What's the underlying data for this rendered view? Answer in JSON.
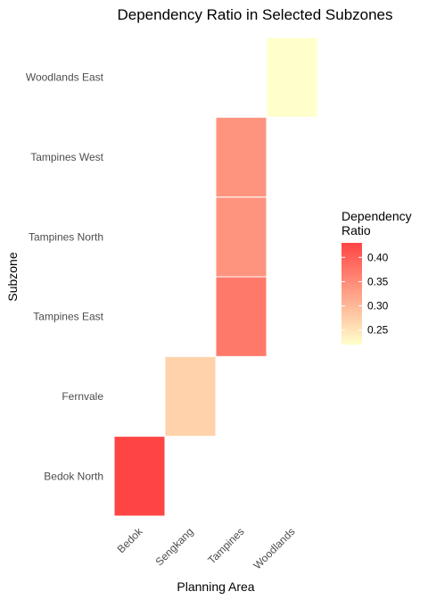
{
  "chart_data": {
    "type": "heatmap",
    "title": "Dependency Ratio in Selected Subzones",
    "xlabel": "Planning Area",
    "ylabel": "Subzone",
    "x_categories": [
      "Bedok",
      "Sengkang",
      "Tampines",
      "Woodlands"
    ],
    "y_categories": [
      "Bedok North",
      "Fernvale",
      "Tampines East",
      "Tampines North",
      "Tampines West",
      "Woodlands East"
    ],
    "cells": [
      {
        "x": "Bedok",
        "y": "Bedok North",
        "value": 0.43
      },
      {
        "x": "Sengkang",
        "y": "Fernvale",
        "value": 0.27
      },
      {
        "x": "Tampines",
        "y": "Tampines East",
        "value": 0.37
      },
      {
        "x": "Tampines",
        "y": "Tampines North",
        "value": 0.34
      },
      {
        "x": "Tampines",
        "y": "Tampines West",
        "value": 0.34
      },
      {
        "x": "Woodlands",
        "y": "Woodlands East",
        "value": 0.22
      }
    ],
    "legend": {
      "title_lines": [
        "Dependency",
        "Ratio"
      ],
      "ticks": [
        0.25,
        0.3,
        0.35,
        0.4
      ],
      "tick_labels": [
        "0.25",
        "0.30",
        "0.35",
        "0.40"
      ],
      "range": [
        0.22,
        0.43
      ],
      "low_color": "#FFFFCC",
      "high_color": "#FF4444",
      "placement": "right"
    },
    "grid": false
  }
}
